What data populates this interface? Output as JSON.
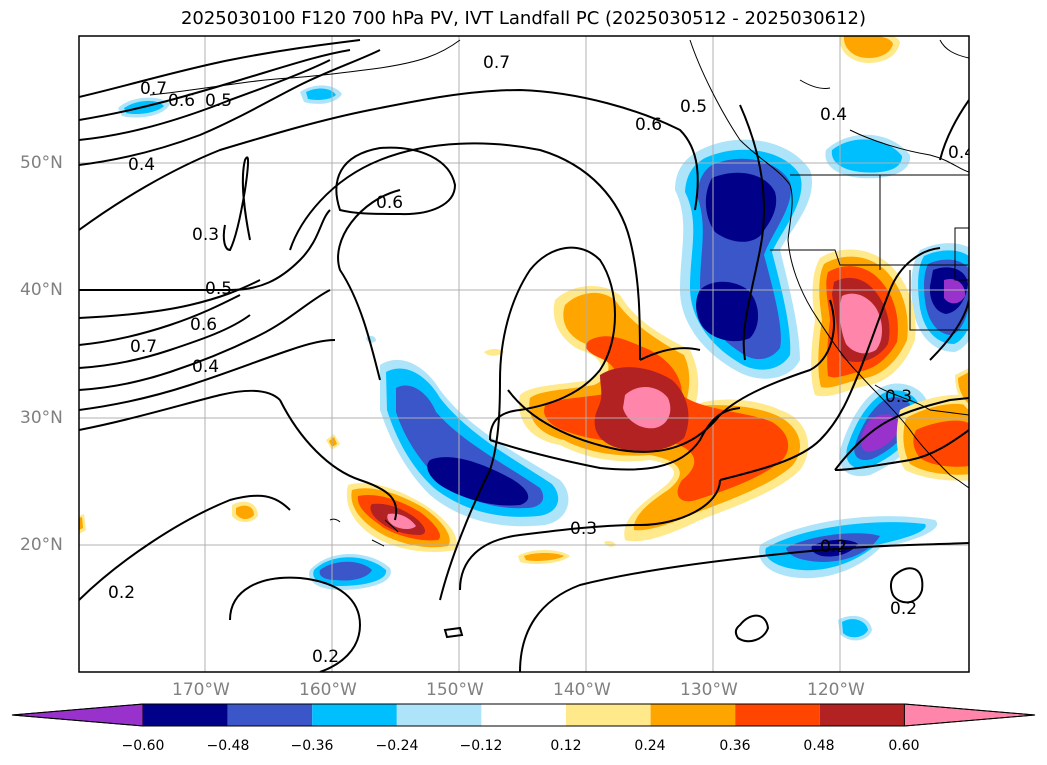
{
  "title": "2025030100 F120 700 hPa PV, IVT Landfall PC (2025030512 - 2025030612)",
  "lat_labels": [
    "50°N",
    "40°N",
    "30°N",
    "20°N"
  ],
  "lon_labels": [
    "170°W",
    "160°W",
    "150°W",
    "140°W",
    "130°W",
    "120°W"
  ],
  "contour_labels": [
    "0.7",
    "0.6",
    "0.5",
    "0.4",
    "0.3",
    "0.5",
    "0.6",
    "0.7",
    "0.4",
    "0.6",
    "0.7",
    "0.6",
    "0.5",
    "0.4",
    "0.4",
    "0.3",
    "0.3",
    "0.2",
    "0.2",
    "0.2",
    "0.2"
  ],
  "colorbar": {
    "ticks": [
      "−0.60",
      "−0.48",
      "−0.36",
      "−0.24",
      "−0.12",
      "0.12",
      "0.24",
      "0.36",
      "0.48",
      "0.60"
    ],
    "colors": [
      "#9932cc",
      "#000088",
      "#3a56c8",
      "#00bfff",
      "#aee4fa",
      "#ffffff",
      "#ffe98a",
      "#ffa500",
      "#ff4500",
      "#b22222",
      "#ff85aa"
    ]
  }
}
